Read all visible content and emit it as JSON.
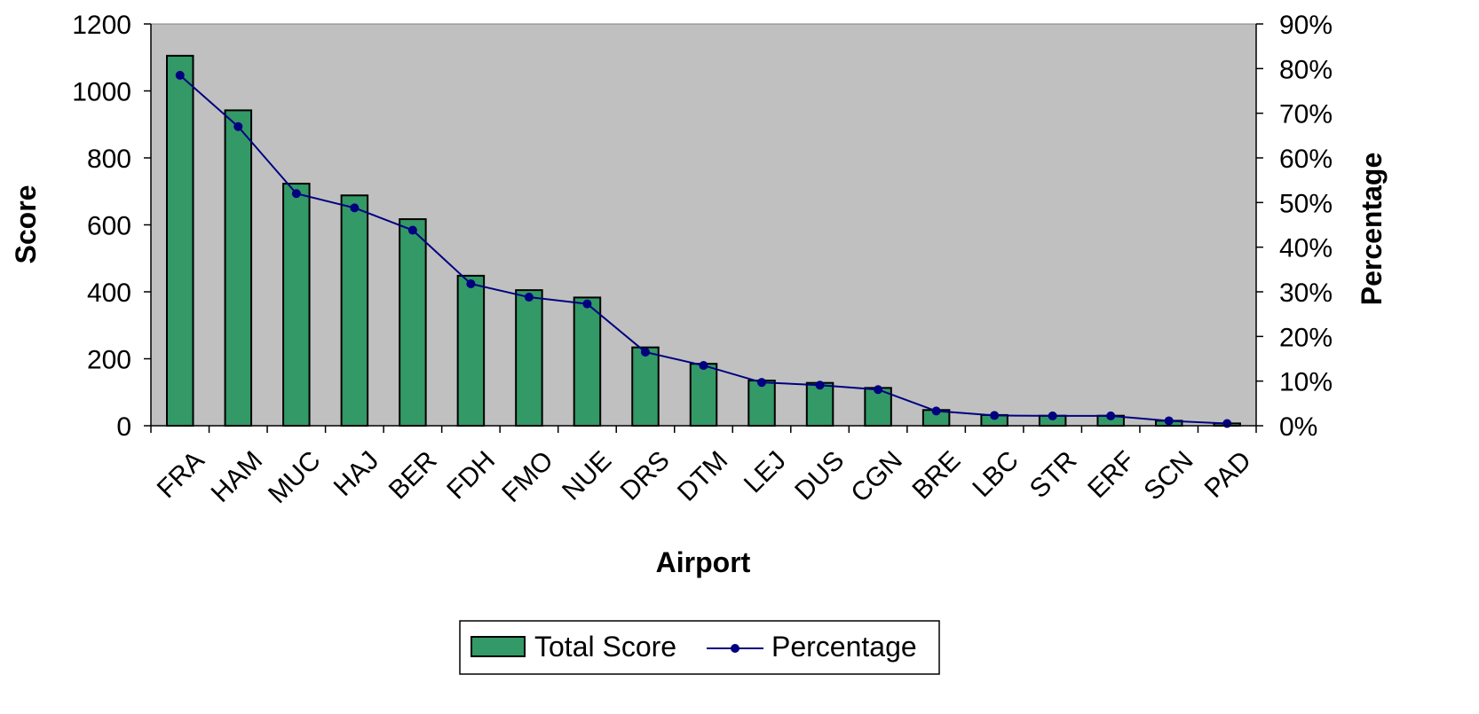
{
  "chart_data": {
    "type": "bar",
    "categories": [
      "FRA",
      "HAM",
      "MUC",
      "HAJ",
      "BER",
      "FDH",
      "FMO",
      "NUE",
      "DRS",
      "DTM",
      "LEJ",
      "DUS",
      "CGN",
      "BRE",
      "LBC",
      "STR",
      "ERF",
      "SCN",
      "PAD"
    ],
    "series": [
      {
        "name": "Total Score",
        "type": "bar",
        "axis": "left",
        "color": "#339966",
        "values": [
          1105,
          942,
          723,
          688,
          617,
          448,
          405,
          383,
          234,
          185,
          135,
          128,
          113,
          47,
          32,
          30,
          30,
          15,
          7
        ]
      },
      {
        "name": "Percentage",
        "type": "line",
        "axis": "right",
        "color": "#000080",
        "values": [
          78.5,
          67.0,
          52.0,
          48.8,
          43.8,
          31.8,
          28.8,
          27.3,
          16.5,
          13.5,
          9.7,
          9.1,
          8.1,
          3.3,
          2.3,
          2.2,
          2.2,
          1.1,
          0.5
        ]
      }
    ],
    "xlabel": "Airport",
    "ylabel": "Score",
    "y2label": "Percentage",
    "ylim": [
      0,
      1200
    ],
    "y2lim": [
      0,
      90
    ],
    "yticks": [
      "0",
      "200",
      "400",
      "600",
      "800",
      "1000",
      "1200"
    ],
    "y2ticks": [
      "0%",
      "10%",
      "20%",
      "30%",
      "40%",
      "50%",
      "60%",
      "70%",
      "80%",
      "90%"
    ],
    "grid": false,
    "legend_position": "bottom",
    "plot_background": "#c0c0c0"
  }
}
